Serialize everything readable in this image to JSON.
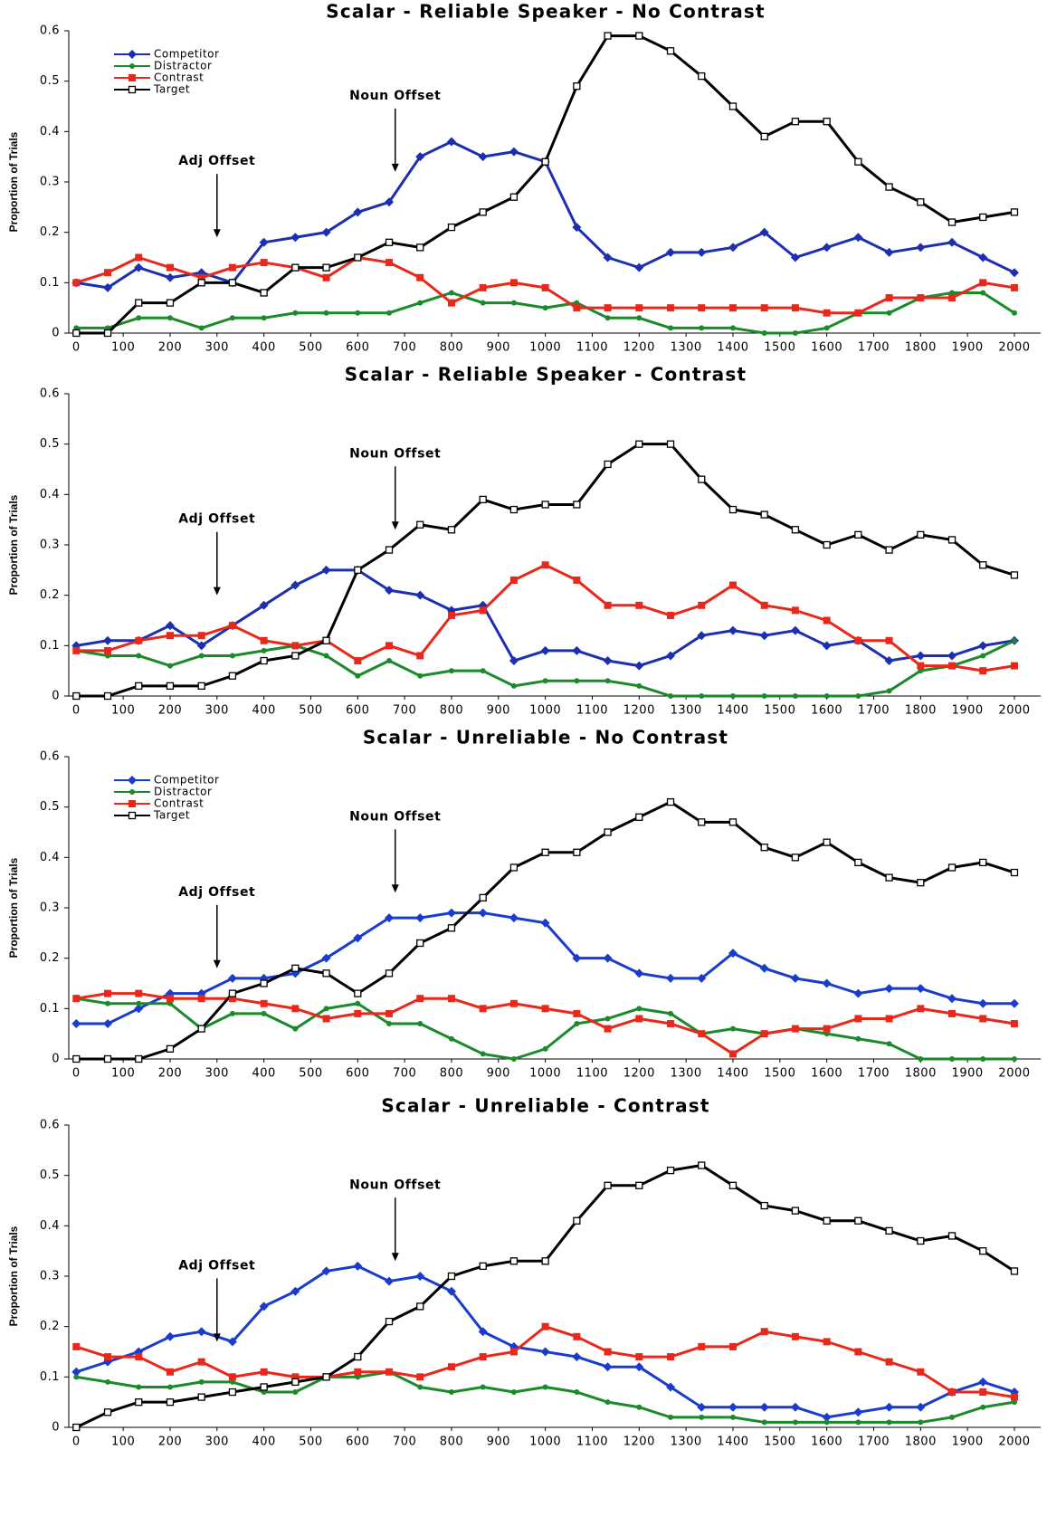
{
  "chart_data": [
    {
      "type": "line",
      "title": "Scalar - Reliable Speaker - No Contrast",
      "y_label": "Proportion of Trials",
      "legend": "upper left",
      "x": [
        0,
        67,
        133,
        200,
        267,
        333,
        400,
        467,
        533,
        600,
        667,
        733,
        800,
        867,
        933,
        1000,
        1067,
        1133,
        1200,
        1267,
        1333,
        1400,
        1467,
        1533,
        1600,
        1667,
        1733,
        1800,
        1867,
        1933,
        2000
      ],
      "xlim": [
        -16,
        2056
      ],
      "xticks": [
        0,
        100,
        200,
        300,
        400,
        500,
        600,
        700,
        800,
        900,
        1000,
        1100,
        1200,
        1300,
        1400,
        1500,
        1600,
        1700,
        1800,
        1900,
        2000
      ],
      "ylim": [
        0,
        0.6
      ],
      "yticks": [
        0,
        0.1,
        0.2,
        0.3,
        0.4,
        0.5,
        0.6
      ],
      "annotations": [
        {
          "text": "Adj Offset",
          "x": 300,
          "y": 0.19
        },
        {
          "text": "Noun Offset",
          "x": 680,
          "y": 0.32
        }
      ],
      "series": [
        {
          "name": "Competitor",
          "color": "#1c2fb0",
          "marker": "diamond",
          "values": [
            0.1,
            0.09,
            0.13,
            0.11,
            0.12,
            0.1,
            0.18,
            0.19,
            0.2,
            0.24,
            0.26,
            0.35,
            0.38,
            0.35,
            0.36,
            0.34,
            0.21,
            0.15,
            0.13,
            0.16,
            0.16,
            0.17,
            0.2,
            0.15,
            0.17,
            0.19,
            0.16,
            0.17,
            0.18,
            0.15,
            0.12
          ]
        },
        {
          "name": "Distractor",
          "color": "#1a8a2a",
          "marker": "circle",
          "values": [
            0.01,
            0.01,
            0.03,
            0.03,
            0.01,
            0.03,
            0.03,
            0.04,
            0.04,
            0.04,
            0.04,
            0.06,
            0.08,
            0.06,
            0.06,
            0.05,
            0.06,
            0.03,
            0.03,
            0.01,
            0.01,
            0.01,
            0.0,
            0.0,
            0.01,
            0.04,
            0.04,
            0.07,
            0.08,
            0.08,
            0.04
          ]
        },
        {
          "name": "Contrast",
          "color": "#e8281a",
          "marker": "square",
          "values": [
            0.1,
            0.12,
            0.15,
            0.13,
            0.11,
            0.13,
            0.14,
            0.13,
            0.11,
            0.15,
            0.14,
            0.11,
            0.06,
            0.09,
            0.1,
            0.09,
            0.05,
            0.05,
            0.05,
            0.05,
            0.05,
            0.05,
            0.05,
            0.05,
            0.04,
            0.04,
            0.07,
            0.07,
            0.07,
            0.1,
            0.09
          ]
        },
        {
          "name": "Target",
          "color": "#000000",
          "marker": "open-square",
          "values": [
            0.0,
            0.0,
            0.06,
            0.06,
            0.1,
            0.1,
            0.08,
            0.13,
            0.13,
            0.15,
            0.18,
            0.17,
            0.21,
            0.24,
            0.27,
            0.34,
            0.49,
            0.59,
            0.59,
            0.56,
            0.51,
            0.45,
            0.39,
            0.42,
            0.42,
            0.34,
            0.29,
            0.26,
            0.22,
            0.23,
            0.24
          ]
        }
      ]
    },
    {
      "type": "line",
      "title": "Scalar - Reliable Speaker - Contrast",
      "y_label": "Proportion of Trials",
      "x": [
        0,
        67,
        133,
        200,
        267,
        333,
        400,
        467,
        533,
        600,
        667,
        733,
        800,
        867,
        933,
        1000,
        1067,
        1133,
        1200,
        1267,
        1333,
        1400,
        1467,
        1533,
        1600,
        1667,
        1733,
        1800,
        1867,
        1933,
        2000
      ],
      "xlim": [
        -16,
        2056
      ],
      "xticks": [
        0,
        100,
        200,
        300,
        400,
        500,
        600,
        700,
        800,
        900,
        1000,
        1100,
        1200,
        1300,
        1400,
        1500,
        1600,
        1700,
        1800,
        1900,
        2000
      ],
      "ylim": [
        0,
        0.6
      ],
      "yticks": [
        0,
        0.1,
        0.2,
        0.3,
        0.4,
        0.5,
        0.6
      ],
      "annotations": [
        {
          "text": "Adj Offset",
          "x": 300,
          "y": 0.2
        },
        {
          "text": "Noun Offset",
          "x": 680,
          "y": 0.33
        }
      ],
      "series": [
        {
          "name": "Competitor",
          "color": "#1c2fb0",
          "marker": "diamond",
          "values": [
            0.1,
            0.11,
            0.11,
            0.14,
            0.1,
            0.14,
            0.18,
            0.22,
            0.25,
            0.25,
            0.21,
            0.2,
            0.17,
            0.18,
            0.07,
            0.09,
            0.09,
            0.07,
            0.06,
            0.08,
            0.12,
            0.13,
            0.12,
            0.13,
            0.1,
            0.11,
            0.07,
            0.08,
            0.08,
            0.1,
            0.11
          ]
        },
        {
          "name": "Distractor",
          "color": "#1a8a2a",
          "marker": "circle",
          "values": [
            0.09,
            0.08,
            0.08,
            0.06,
            0.08,
            0.08,
            0.09,
            0.1,
            0.08,
            0.04,
            0.07,
            0.04,
            0.05,
            0.05,
            0.02,
            0.03,
            0.03,
            0.03,
            0.02,
            0.0,
            0.0,
            0.0,
            0.0,
            0.0,
            0.0,
            0.0,
            0.01,
            0.05,
            0.06,
            0.08,
            0.11
          ]
        },
        {
          "name": "Contrast",
          "color": "#e8281a",
          "marker": "square",
          "values": [
            0.09,
            0.09,
            0.11,
            0.12,
            0.12,
            0.14,
            0.11,
            0.1,
            0.11,
            0.07,
            0.1,
            0.08,
            0.16,
            0.17,
            0.23,
            0.26,
            0.23,
            0.18,
            0.18,
            0.16,
            0.18,
            0.22,
            0.18,
            0.17,
            0.15,
            0.11,
            0.11,
            0.06,
            0.06,
            0.05,
            0.06
          ]
        },
        {
          "name": "Target",
          "color": "#000000",
          "marker": "open-square",
          "values": [
            0.0,
            0.0,
            0.02,
            0.02,
            0.02,
            0.04,
            0.07,
            0.08,
            0.11,
            0.25,
            0.29,
            0.34,
            0.33,
            0.39,
            0.37,
            0.38,
            0.38,
            0.46,
            0.5,
            0.5,
            0.43,
            0.37,
            0.36,
            0.33,
            0.3,
            0.32,
            0.29,
            0.32,
            0.31,
            0.26,
            0.24
          ]
        }
      ]
    },
    {
      "type": "line",
      "title": "Scalar - Unreliable - No Contrast",
      "y_label": "Proportion of Trials",
      "legend": "upper left",
      "x": [
        0,
        67,
        133,
        200,
        267,
        333,
        400,
        467,
        533,
        600,
        667,
        733,
        800,
        867,
        933,
        1000,
        1067,
        1133,
        1200,
        1267,
        1333,
        1400,
        1467,
        1533,
        1600,
        1667,
        1733,
        1800,
        1867,
        1933,
        2000
      ],
      "xlim": [
        -16,
        2056
      ],
      "xticks": [
        0,
        100,
        200,
        300,
        400,
        500,
        600,
        700,
        800,
        900,
        1000,
        1100,
        1200,
        1300,
        1400,
        1500,
        1600,
        1700,
        1800,
        1900,
        2000
      ],
      "ylim": [
        0,
        0.6
      ],
      "yticks": [
        0,
        0.1,
        0.2,
        0.3,
        0.4,
        0.5,
        0.6
      ],
      "annotations": [
        {
          "text": "Adj Offset",
          "x": 300,
          "y": 0.18
        },
        {
          "text": "Noun Offset",
          "x": 680,
          "y": 0.33
        }
      ],
      "series": [
        {
          "name": "Competitor",
          "color": "#1a3ccc",
          "marker": "diamond",
          "values": [
            0.07,
            0.07,
            0.1,
            0.13,
            0.13,
            0.16,
            0.16,
            0.17,
            0.2,
            0.24,
            0.28,
            0.28,
            0.29,
            0.29,
            0.28,
            0.27,
            0.2,
            0.2,
            0.17,
            0.16,
            0.16,
            0.21,
            0.18,
            0.16,
            0.15,
            0.13,
            0.14,
            0.14,
            0.12,
            0.11,
            0.11
          ]
        },
        {
          "name": "Distractor",
          "color": "#1a8a2a",
          "marker": "circle",
          "values": [
            0.12,
            0.11,
            0.11,
            0.11,
            0.06,
            0.09,
            0.09,
            0.06,
            0.1,
            0.11,
            0.07,
            0.07,
            0.04,
            0.01,
            0.0,
            0.02,
            0.07,
            0.08,
            0.1,
            0.09,
            0.05,
            0.06,
            0.05,
            0.06,
            0.05,
            0.04,
            0.03,
            0.0,
            0.0,
            0.0,
            0.0
          ]
        },
        {
          "name": "Contrast",
          "color": "#e8281a",
          "marker": "square",
          "values": [
            0.12,
            0.13,
            0.13,
            0.12,
            0.12,
            0.12,
            0.11,
            0.1,
            0.08,
            0.09,
            0.09,
            0.12,
            0.12,
            0.1,
            0.11,
            0.1,
            0.09,
            0.06,
            0.08,
            0.07,
            0.05,
            0.01,
            0.05,
            0.06,
            0.06,
            0.08,
            0.08,
            0.1,
            0.09,
            0.08,
            0.07
          ]
        },
        {
          "name": "Target",
          "color": "#000000",
          "marker": "open-square",
          "values": [
            0.0,
            0.0,
            0.0,
            0.02,
            0.06,
            0.13,
            0.15,
            0.18,
            0.17,
            0.13,
            0.17,
            0.23,
            0.26,
            0.32,
            0.38,
            0.41,
            0.41,
            0.45,
            0.48,
            0.51,
            0.47,
            0.47,
            0.42,
            0.4,
            0.43,
            0.39,
            0.36,
            0.35,
            0.38,
            0.39,
            0.37
          ]
        }
      ]
    },
    {
      "type": "line",
      "title": "Scalar - Unreliable - Contrast",
      "y_label": "Proportion of Trials",
      "x": [
        0,
        67,
        133,
        200,
        267,
        333,
        400,
        467,
        533,
        600,
        667,
        733,
        800,
        867,
        933,
        1000,
        1067,
        1133,
        1200,
        1267,
        1333,
        1400,
        1467,
        1533,
        1600,
        1667,
        1733,
        1800,
        1867,
        1933,
        2000
      ],
      "xlim": [
        -16,
        2056
      ],
      "xticks": [
        0,
        100,
        200,
        300,
        400,
        500,
        600,
        700,
        800,
        900,
        1000,
        1100,
        1200,
        1300,
        1400,
        1500,
        1600,
        1700,
        1800,
        1900,
        2000
      ],
      "ylim": [
        0,
        0.6
      ],
      "yticks": [
        0,
        0.1,
        0.2,
        0.3,
        0.4,
        0.5,
        0.6
      ],
      "annotations": [
        {
          "text": "Adj Offset",
          "x": 300,
          "y": 0.17
        },
        {
          "text": "Noun Offset",
          "x": 680,
          "y": 0.33
        }
      ],
      "series": [
        {
          "name": "Competitor",
          "color": "#1a3ccc",
          "marker": "diamond",
          "values": [
            0.11,
            0.13,
            0.15,
            0.18,
            0.19,
            0.17,
            0.24,
            0.27,
            0.31,
            0.32,
            0.29,
            0.3,
            0.27,
            0.19,
            0.16,
            0.15,
            0.14,
            0.12,
            0.12,
            0.08,
            0.04,
            0.04,
            0.04,
            0.04,
            0.02,
            0.03,
            0.04,
            0.04,
            0.07,
            0.09,
            0.07
          ]
        },
        {
          "name": "Distractor",
          "color": "#1a8a2a",
          "marker": "circle",
          "values": [
            0.1,
            0.09,
            0.08,
            0.08,
            0.09,
            0.09,
            0.07,
            0.07,
            0.1,
            0.1,
            0.11,
            0.08,
            0.07,
            0.08,
            0.07,
            0.08,
            0.07,
            0.05,
            0.04,
            0.02,
            0.02,
            0.02,
            0.01,
            0.01,
            0.01,
            0.01,
            0.01,
            0.01,
            0.02,
            0.04,
            0.05
          ]
        },
        {
          "name": "Contrast",
          "color": "#e8281a",
          "marker": "square",
          "values": [
            0.16,
            0.14,
            0.14,
            0.11,
            0.13,
            0.1,
            0.11,
            0.1,
            0.1,
            0.11,
            0.11,
            0.1,
            0.12,
            0.14,
            0.15,
            0.2,
            0.18,
            0.15,
            0.14,
            0.14,
            0.16,
            0.16,
            0.19,
            0.18,
            0.17,
            0.15,
            0.13,
            0.11,
            0.07,
            0.07,
            0.06
          ]
        },
        {
          "name": "Target",
          "color": "#000000",
          "marker": "open-square",
          "values": [
            0.0,
            0.03,
            0.05,
            0.05,
            0.06,
            0.07,
            0.08,
            0.09,
            0.1,
            0.14,
            0.21,
            0.24,
            0.3,
            0.32,
            0.33,
            0.33,
            0.41,
            0.48,
            0.48,
            0.51,
            0.52,
            0.48,
            0.44,
            0.43,
            0.41,
            0.41,
            0.39,
            0.37,
            0.38,
            0.35,
            0.31
          ]
        }
      ]
    }
  ]
}
